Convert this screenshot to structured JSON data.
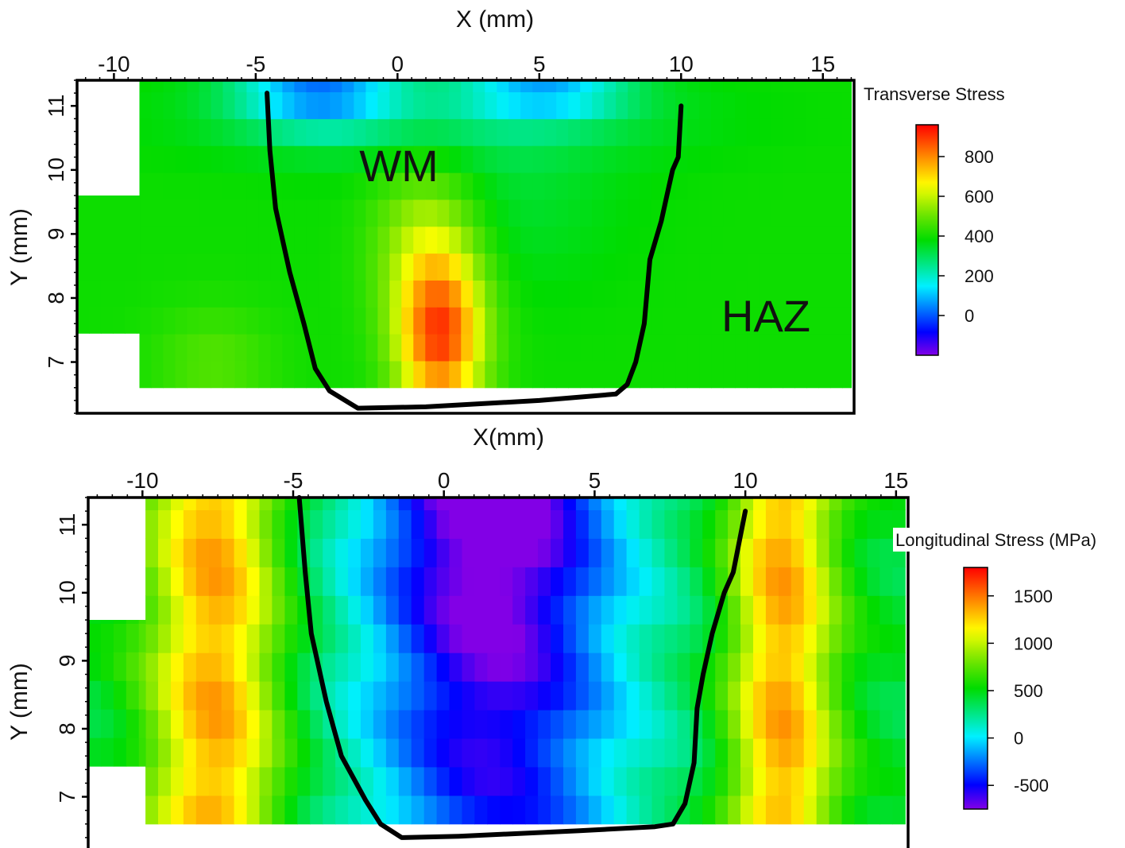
{
  "chart_data": [
    {
      "type": "heatmap",
      "title": "",
      "xlabel": "X (mm)",
      "ylabel": "Y (mm)",
      "colorbar_label": "Transverse Stress",
      "xlim": [
        -11.3,
        16.1
      ],
      "ylim": [
        6.2,
        11.4
      ],
      "xticks": [
        -10,
        -5,
        0,
        5,
        10,
        15
      ],
      "yticks": [
        7,
        8,
        9,
        10,
        11
      ],
      "colorbar_range": [
        -200,
        960
      ],
      "colorbar_ticks": [
        0,
        200,
        400,
        600,
        800
      ],
      "grid": false,
      "annotations": [
        "WM",
        "HAZ"
      ],
      "fusion_boundary": [
        [
          -4.6,
          11.2
        ],
        [
          -4.5,
          10.3
        ],
        [
          -4.3,
          9.4
        ],
        [
          -3.8,
          8.4
        ],
        [
          -3.3,
          7.6
        ],
        [
          -2.9,
          6.9
        ],
        [
          -2.4,
          6.55
        ],
        [
          -1.4,
          6.28
        ],
        [
          1.0,
          6.3
        ],
        [
          5.0,
          6.4
        ],
        [
          7.7,
          6.5
        ],
        [
          8.1,
          6.65
        ],
        [
          8.4,
          7.0
        ],
        [
          8.7,
          7.6
        ],
        [
          8.9,
          8.6
        ],
        [
          9.3,
          9.2
        ],
        [
          9.5,
          9.6
        ],
        [
          9.7,
          10.0
        ],
        [
          9.9,
          10.2
        ],
        [
          10.0,
          11.0
        ]
      ]
    },
    {
      "type": "heatmap",
      "title": "",
      "xlabel": "X(mm)",
      "ylabel": "Y (mm)",
      "colorbar_label": "Longitudinal Stress (MPa)",
      "xlim": [
        -11.8,
        15.4
      ],
      "ylim": [
        6.2,
        11.4
      ],
      "xticks": [
        -10,
        -5,
        0,
        5,
        10,
        15
      ],
      "yticks": [
        7,
        8,
        9,
        10,
        11
      ],
      "colorbar_range": [
        -750,
        1800
      ],
      "colorbar_ticks": [
        -500,
        0,
        500,
        1000,
        1500
      ],
      "grid": false,
      "annotations": [],
      "fusion_boundary": [
        [
          -4.8,
          11.4
        ],
        [
          -4.6,
          10.3
        ],
        [
          -4.4,
          9.4
        ],
        [
          -3.9,
          8.4
        ],
        [
          -3.4,
          7.6
        ],
        [
          -2.6,
          6.95
        ],
        [
          -2.1,
          6.6
        ],
        [
          -1.4,
          6.4
        ],
        [
          0.5,
          6.42
        ],
        [
          4.5,
          6.5
        ],
        [
          7.0,
          6.56
        ],
        [
          7.6,
          6.6
        ],
        [
          8.0,
          6.9
        ],
        [
          8.3,
          7.5
        ],
        [
          8.4,
          8.3
        ],
        [
          8.6,
          8.8
        ],
        [
          8.9,
          9.4
        ],
        [
          9.3,
          10.0
        ],
        [
          9.6,
          10.3
        ],
        [
          10.0,
          11.2
        ]
      ]
    }
  ]
}
